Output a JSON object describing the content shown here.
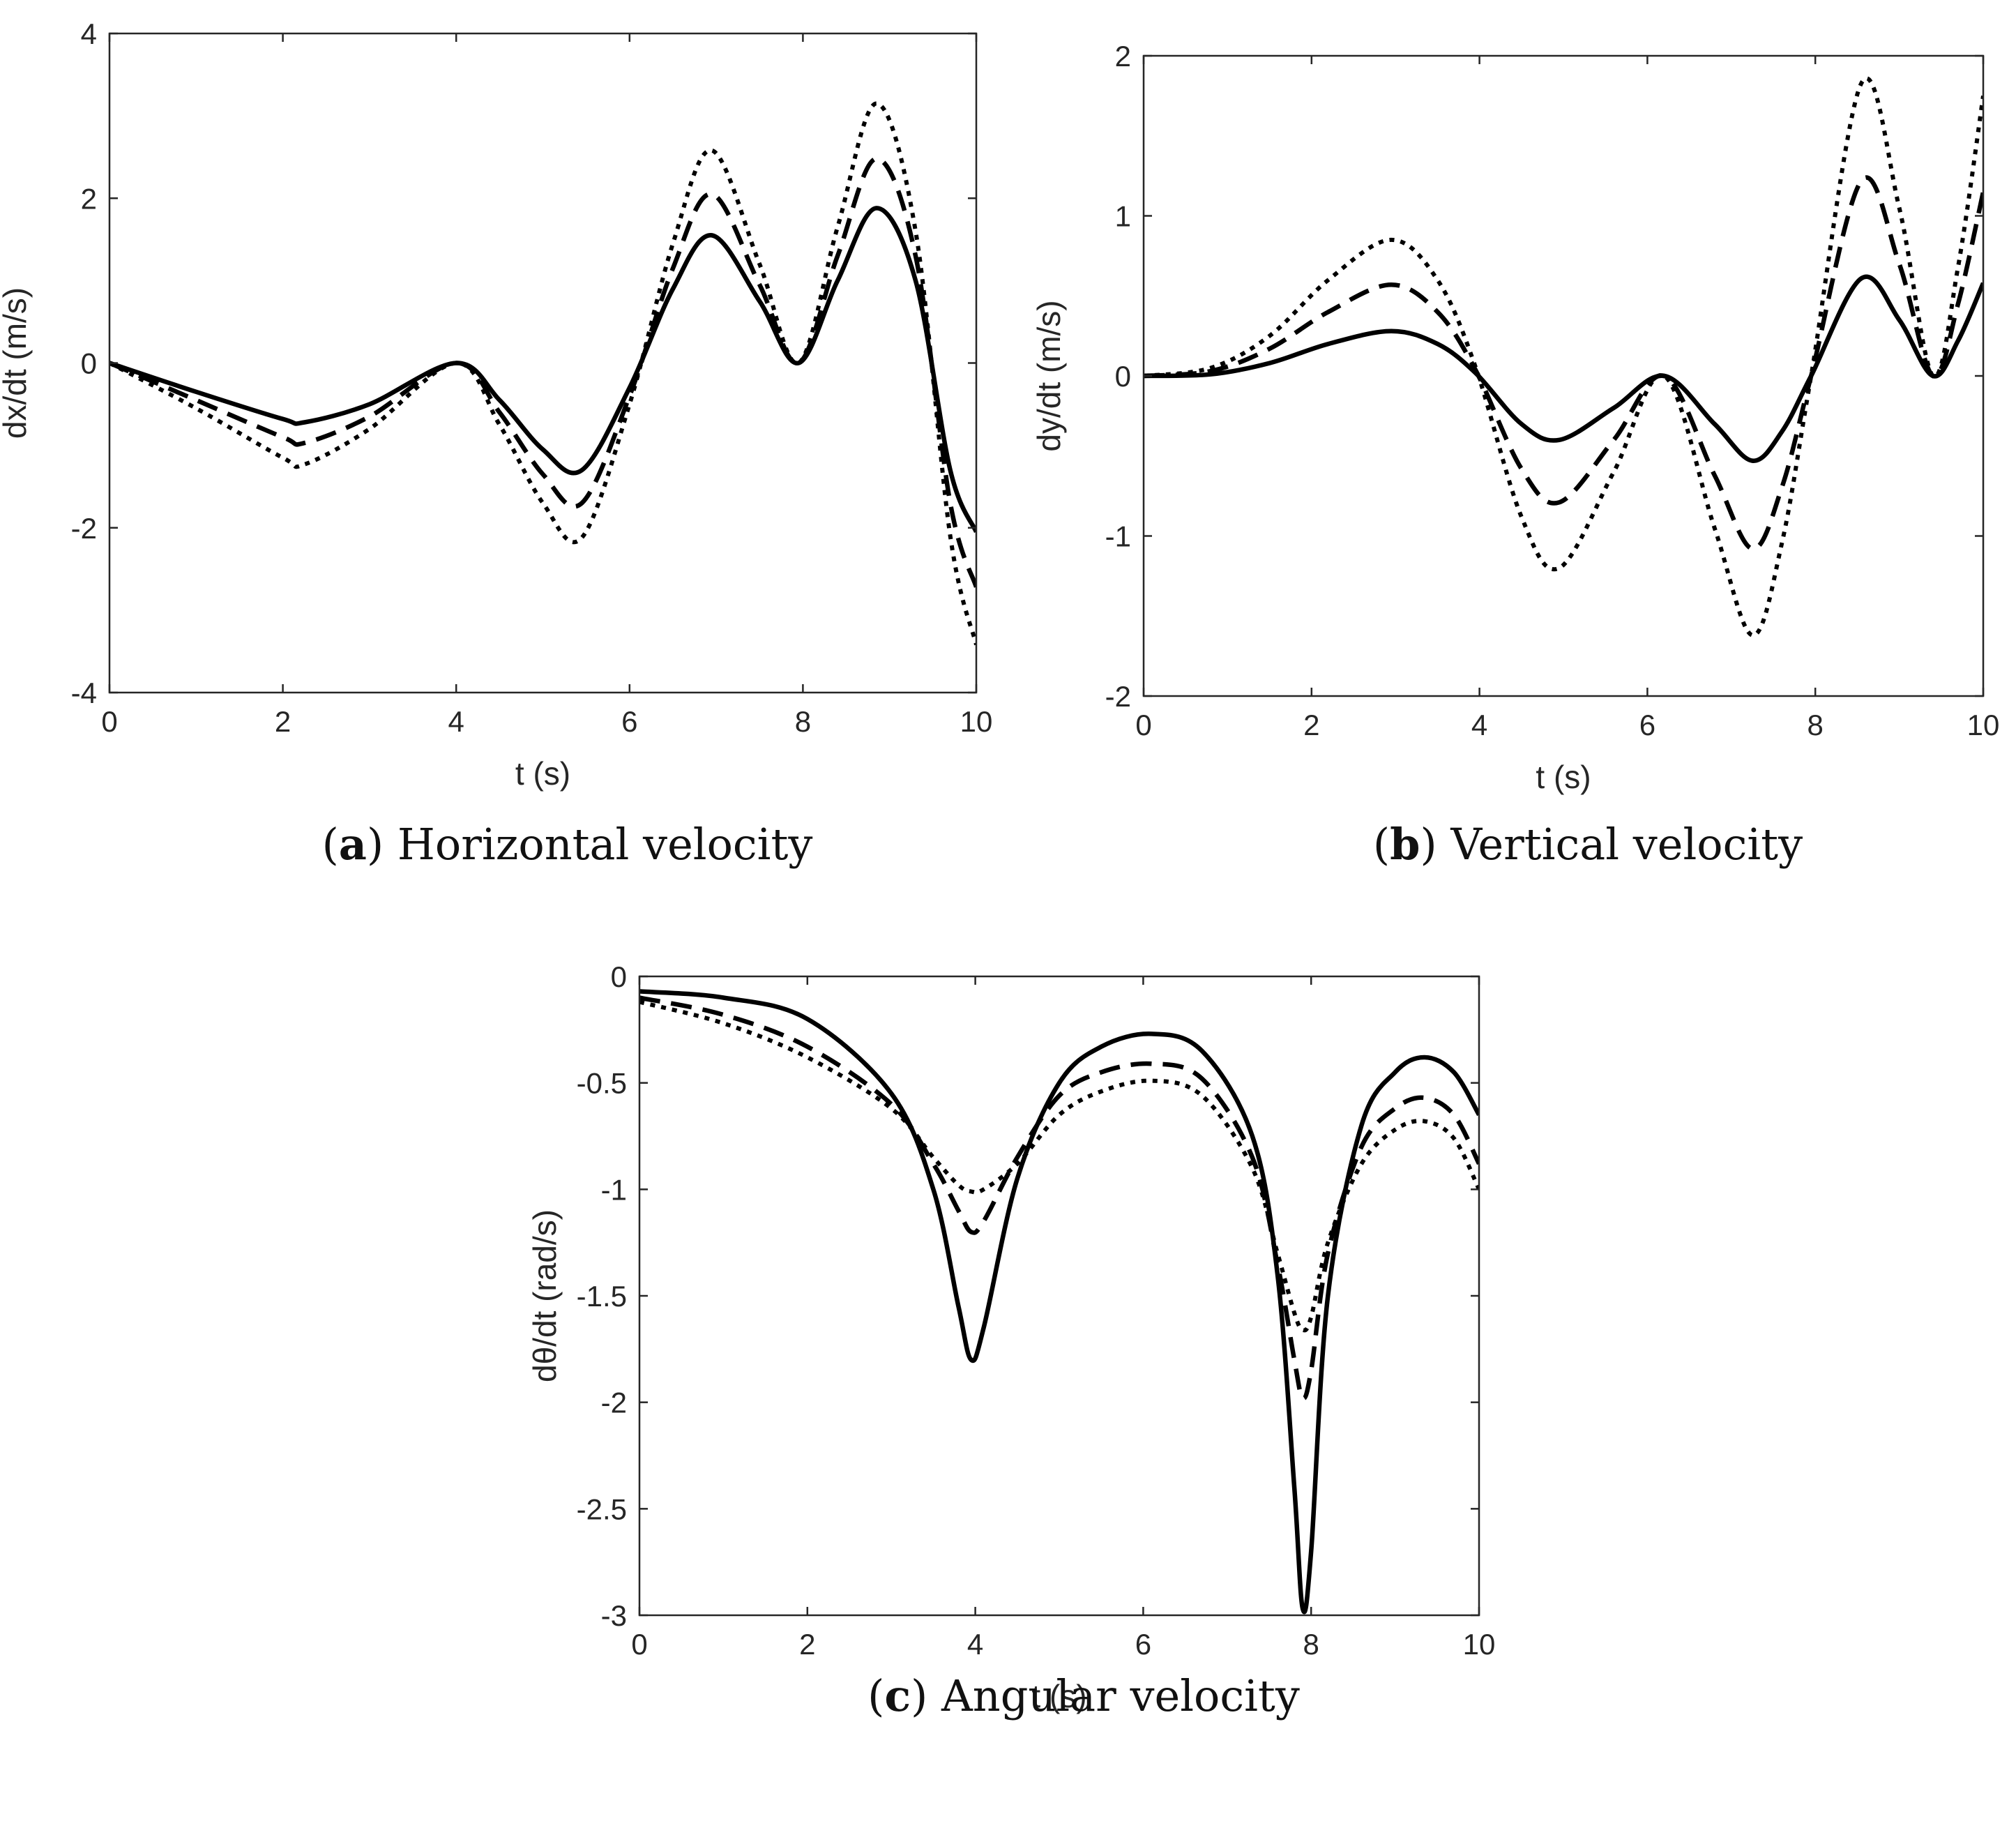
{
  "colors": {
    "line": "#000000",
    "axis": "#262626",
    "background": "#ffffff"
  },
  "chart_data": [
    {
      "type": "line",
      "caption_letter": "a",
      "caption_text": "Horizontal velocity",
      "xlabel": "t (s)",
      "ylabel": "dx/dt (m/s)",
      "xlim": [
        0,
        10
      ],
      "ylim": [
        -4,
        4
      ],
      "xticks": [
        0,
        2,
        4,
        6,
        8,
        10
      ],
      "yticks": [
        -4,
        -2,
        0,
        2,
        4
      ],
      "xtick_labels": [
        "0",
        "2",
        "4",
        "6",
        "8",
        "10"
      ],
      "ytick_labels": [
        "-4",
        "-2",
        "0",
        "2",
        "4"
      ],
      "grid": false,
      "series": [
        {
          "name": "solid",
          "dash": "solid",
          "x": [
            0,
            1,
            2,
            2.25,
            3,
            4,
            4.5,
            5,
            5.45,
            6,
            6.5,
            6.95,
            7.5,
            7.95,
            8.4,
            8.85,
            9.3,
            9.7,
            10
          ],
          "y": [
            0,
            -0.35,
            -0.68,
            -0.72,
            -0.5,
            0,
            -0.45,
            -1.05,
            -1.3,
            -0.3,
            0.9,
            1.55,
            0.75,
            0,
            1.0,
            1.88,
            1.0,
            -1.3,
            -2.05
          ]
        },
        {
          "name": "dashed",
          "dash": "dashed",
          "x": [
            0,
            1,
            2,
            2.25,
            3,
            4,
            4.5,
            5,
            5.45,
            6,
            6.5,
            6.95,
            7.5,
            7.95,
            8.4,
            8.85,
            9.3,
            9.7,
            10
          ],
          "y": [
            0,
            -0.45,
            -0.9,
            -0.97,
            -0.65,
            0,
            -0.6,
            -1.35,
            -1.7,
            -0.4,
            1.15,
            2.05,
            0.95,
            0,
            1.3,
            2.48,
            1.3,
            -1.7,
            -2.72
          ]
        },
        {
          "name": "dotted",
          "dash": "dotted",
          "x": [
            0,
            1,
            2,
            2.25,
            3,
            4,
            4.5,
            5,
            5.45,
            6,
            6.5,
            6.95,
            7.5,
            7.95,
            8.4,
            8.85,
            9.3,
            9.7,
            10
          ],
          "y": [
            0,
            -0.55,
            -1.15,
            -1.23,
            -0.8,
            0,
            -0.75,
            -1.7,
            -2.12,
            -0.5,
            1.45,
            2.58,
            1.2,
            0,
            1.65,
            3.15,
            1.6,
            -2.1,
            -3.42
          ]
        }
      ]
    },
    {
      "type": "line",
      "caption_letter": "b",
      "caption_text": "Vertical velocity",
      "xlabel": "t (s)",
      "ylabel": "dy/dt (m/s)",
      "xlim": [
        0,
        10
      ],
      "ylim": [
        -2,
        2
      ],
      "xticks": [
        0,
        2,
        4,
        6,
        8,
        10
      ],
      "yticks": [
        -2,
        -1,
        0,
        1,
        2
      ],
      "xtick_labels": [
        "0",
        "2",
        "4",
        "6",
        "8",
        "10"
      ],
      "ytick_labels": [
        "-2",
        "-1",
        "0",
        "1",
        "2"
      ],
      "grid": false,
      "series": [
        {
          "name": "solid",
          "dash": "solid",
          "x": [
            0,
            0.8,
            1.5,
            2.2,
            2.95,
            3.5,
            3.95,
            4.5,
            4.95,
            5.6,
            6.2,
            6.8,
            7.25,
            7.6,
            7.95,
            8.55,
            9.0,
            9.4,
            9.7,
            10
          ],
          "y": [
            0,
            0.01,
            0.08,
            0.2,
            0.28,
            0.2,
            0.02,
            -0.3,
            -0.4,
            -0.2,
            0,
            -0.3,
            -0.53,
            -0.35,
            0,
            0.61,
            0.35,
            0,
            0.22,
            0.58
          ]
        },
        {
          "name": "dashed",
          "dash": "dashed",
          "x": [
            0,
            0.8,
            1.5,
            2.2,
            2.95,
            3.5,
            3.95,
            4.5,
            4.95,
            5.6,
            6.2,
            6.8,
            7.25,
            7.6,
            7.95,
            8.55,
            9.0,
            9.4,
            9.7,
            10
          ],
          "y": [
            0,
            0.03,
            0.17,
            0.4,
            0.57,
            0.4,
            0.04,
            -0.58,
            -0.79,
            -0.4,
            0,
            -0.62,
            -1.08,
            -0.7,
            0,
            1.22,
            0.7,
            0,
            0.45,
            1.15
          ]
        },
        {
          "name": "dotted",
          "dash": "dotted",
          "x": [
            0,
            0.8,
            1.5,
            2.2,
            2.95,
            3.5,
            3.95,
            4.5,
            4.95,
            5.6,
            6.2,
            6.8,
            7.25,
            7.6,
            7.95,
            8.55,
            9.0,
            9.4,
            9.7,
            10
          ],
          "y": [
            0,
            0.05,
            0.25,
            0.6,
            0.85,
            0.6,
            0.06,
            -0.88,
            -1.2,
            -0.6,
            0,
            -0.95,
            -1.62,
            -1.05,
            0,
            1.83,
            1.05,
            0,
            0.68,
            1.75
          ]
        }
      ]
    },
    {
      "type": "line",
      "caption_letter": "c",
      "caption_text": "Angular velocity",
      "xlabel": "t (s)",
      "ylabel": "dθ/dt (rad/s)",
      "xlim": [
        0,
        10
      ],
      "ylim": [
        -3,
        0
      ],
      "xticks": [
        0,
        2,
        4,
        6,
        8,
        10
      ],
      "yticks": [
        -3,
        -2.5,
        -2,
        -1.5,
        -1,
        -0.5,
        0
      ],
      "xtick_labels": [
        "0",
        "2",
        "4",
        "6",
        "8",
        "10"
      ],
      "ytick_labels": [
        "-3",
        "-2.5",
        "-2",
        "-1.5",
        "-1",
        "-0.5",
        "0"
      ],
      "grid": false,
      "series": [
        {
          "name": "solid",
          "dash": "solid",
          "x": [
            0,
            1,
            2,
            3,
            3.5,
            3.8,
            3.95,
            4.1,
            4.5,
            5,
            5.5,
            6.1,
            6.7,
            7.3,
            7.6,
            7.8,
            7.9,
            8.0,
            8.2,
            8.6,
            9.0,
            9.35,
            9.7,
            10
          ],
          "y": [
            -0.07,
            -0.1,
            -0.2,
            -0.55,
            -1.0,
            -1.55,
            -1.8,
            -1.65,
            -0.95,
            -0.5,
            -0.33,
            -0.27,
            -0.35,
            -0.75,
            -1.4,
            -2.4,
            -2.97,
            -2.7,
            -1.5,
            -0.7,
            -0.45,
            -0.38,
            -0.45,
            -0.65
          ]
        },
        {
          "name": "dashed",
          "dash": "dashed",
          "x": [
            0,
            1,
            2,
            3,
            3.5,
            3.8,
            3.95,
            4.1,
            4.5,
            5,
            5.5,
            6.1,
            6.7,
            7.3,
            7.6,
            7.8,
            7.9,
            8.0,
            8.2,
            8.6,
            9.0,
            9.35,
            9.7,
            10
          ],
          "y": [
            -0.1,
            -0.18,
            -0.33,
            -0.6,
            -0.88,
            -1.1,
            -1.2,
            -1.15,
            -0.85,
            -0.56,
            -0.45,
            -0.41,
            -0.48,
            -0.85,
            -1.35,
            -1.8,
            -1.98,
            -1.85,
            -1.3,
            -0.8,
            -0.62,
            -0.57,
            -0.65,
            -0.88
          ]
        },
        {
          "name": "dotted",
          "dash": "dotted",
          "x": [
            0,
            1,
            2,
            3,
            3.5,
            3.8,
            3.95,
            4.1,
            4.5,
            5,
            5.5,
            6.1,
            6.7,
            7.3,
            7.6,
            7.8,
            7.9,
            8.0,
            8.2,
            8.6,
            9.0,
            9.35,
            9.7,
            10
          ],
          "y": [
            -0.12,
            -0.22,
            -0.38,
            -0.62,
            -0.85,
            -0.98,
            -1.01,
            -1.0,
            -0.88,
            -0.65,
            -0.54,
            -0.49,
            -0.56,
            -0.9,
            -1.3,
            -1.58,
            -1.66,
            -1.6,
            -1.25,
            -0.88,
            -0.72,
            -0.68,
            -0.76,
            -1.0
          ]
        }
      ]
    }
  ]
}
